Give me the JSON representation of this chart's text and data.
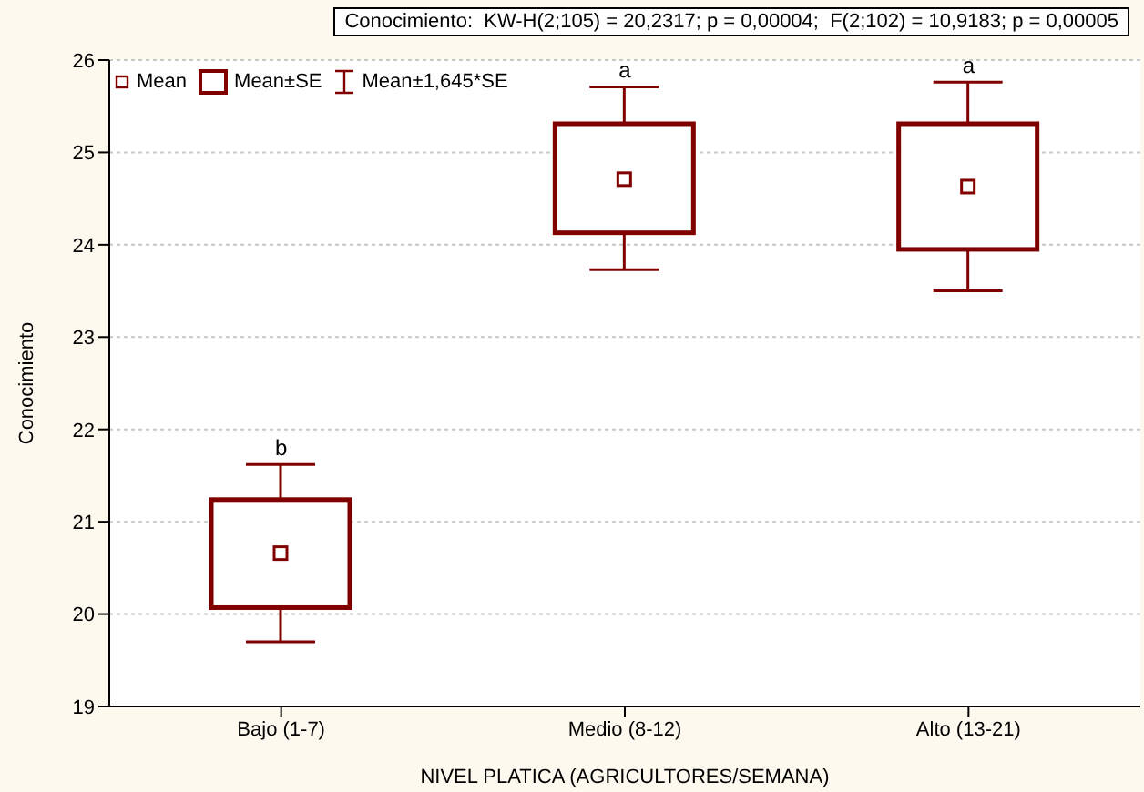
{
  "chart_data": {
    "type": "box",
    "title": "Conocimiento:  KW-H(2;105) = 20,2317; p = 0,00004;  F(2;102) = 10,9183; p = 0,00005",
    "xlabel": "NIVEL PLATICA  (AGRICULTORES/SEMANA)",
    "ylabel": "Conocimiento",
    "categories": [
      "Bajo (1-7)",
      "Medio (8-12)",
      "Alto (13-21)"
    ],
    "color": "#800000",
    "boxes": [
      {
        "low": 19.7,
        "q1": 20.07,
        "median": 20.66,
        "q3": 21.24,
        "high": 21.62
      },
      {
        "low": 23.73,
        "q1": 24.13,
        "median": 24.71,
        "q3": 25.31,
        "high": 25.71
      },
      {
        "low": 23.5,
        "q1": 23.95,
        "median": 24.63,
        "q3": 25.31,
        "high": 25.76
      }
    ],
    "annotations": [
      "Mean",
      "Mean±SE",
      "Mean±1,645*SE",
      {
        "text": "b",
        "x": "Bajo (1-7)",
        "y": 21.62
      },
      {
        "text": "a",
        "x": "Medio (8-12)",
        "y": 25.71
      },
      {
        "text": "a",
        "x": "Alto (13-21)",
        "y": 25.76
      }
    ],
    "ylim": [
      19,
      26
    ],
    "yticks": [
      19,
      20,
      21,
      22,
      23,
      24,
      25,
      26
    ],
    "grid": "y"
  }
}
